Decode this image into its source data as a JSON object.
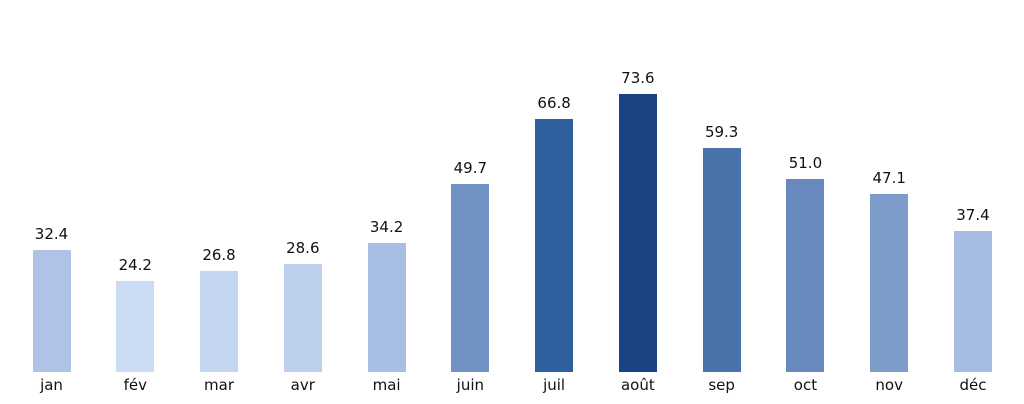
{
  "chart_data": {
    "type": "bar",
    "title": "",
    "xlabel": "",
    "ylabel": "",
    "categories": [
      "jan",
      "fév",
      "mar",
      "avr",
      "mai",
      "juin",
      "juil",
      "août",
      "sep",
      "oct",
      "nov",
      "déc"
    ],
    "values": [
      32.4,
      24.2,
      26.8,
      28.6,
      34.2,
      49.7,
      66.8,
      73.6,
      59.3,
      51.0,
      47.1,
      37.4
    ],
    "value_labels": [
      "32.4",
      "24.2",
      "26.8",
      "28.6",
      "34.2",
      "49.7",
      "66.8",
      "73.6",
      "59.3",
      "51.0",
      "47.1",
      "37.4"
    ],
    "colors": [
      "#aec3e5",
      "#ccdcf4",
      "#c4d6f0",
      "#bdd1ee",
      "#a9bee4",
      "#6f92c3",
      "#2e5f9f",
      "#1a4383",
      "#4872aa",
      "#6789bd",
      "#7e9cca",
      "#a6bce2"
    ],
    "ylim": [
      0,
      80
    ],
    "grid": false,
    "axes_visible": false,
    "legend": null,
    "background_color": "#ffffff",
    "text_color": "#111111"
  }
}
